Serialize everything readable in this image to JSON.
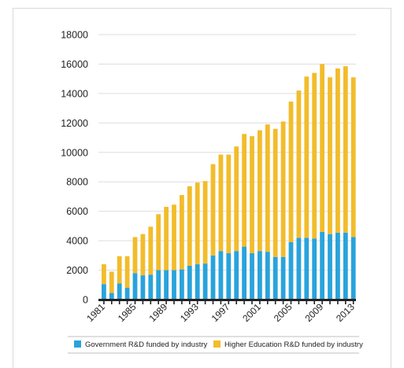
{
  "chart_data": {
    "type": "bar",
    "stacked": true,
    "title": "",
    "xlabel": "",
    "ylabel": "",
    "ylim": [
      0,
      18000
    ],
    "yticks": [
      0,
      2000,
      4000,
      6000,
      8000,
      10000,
      12000,
      14000,
      16000,
      18000
    ],
    "grid": true,
    "legend": "bottom",
    "colors": {
      "government": "#29a3dc",
      "higher_education": "#f2bc2b",
      "axis": "#222222",
      "grid": "#dedede"
    },
    "categories": [
      "1981",
      "1982",
      "1983",
      "1984",
      "1985",
      "1986",
      "1987",
      "1988",
      "1989",
      "1990",
      "1991",
      "1992",
      "1993",
      "1994",
      "1995",
      "1996",
      "1997",
      "1998",
      "1999",
      "2000",
      "2001",
      "2002",
      "2003",
      "2004",
      "2005",
      "2006",
      "2007",
      "2008",
      "2009",
      "2010",
      "2011",
      "2012",
      "2013"
    ],
    "xtick_labels": [
      "1981",
      "1985",
      "1989",
      "1993",
      "1997",
      "2001",
      "2005",
      "2009",
      "2013"
    ],
    "series": [
      {
        "name": "Government R&D funded by industry",
        "values": [
          1050,
          450,
          1100,
          800,
          1800,
          1650,
          1700,
          2000,
          2000,
          2000,
          2050,
          2300,
          2400,
          2450,
          3000,
          3300,
          3150,
          3300,
          3600,
          3150,
          3300,
          3250,
          2900,
          2900,
          3900,
          4200,
          4200,
          4150,
          4600,
          4450,
          4550,
          4550,
          4250
        ]
      },
      {
        "name": "Higher Education R&D funded by industry",
        "values": [
          1350,
          1450,
          1850,
          2150,
          2450,
          2800,
          3250,
          3800,
          4300,
          4450,
          5050,
          5400,
          5550,
          5600,
          6200,
          6550,
          6700,
          7100,
          7650,
          7950,
          8200,
          8650,
          8700,
          9200,
          9550,
          10000,
          10950,
          11250,
          11400,
          10650,
          11150,
          11300,
          10850
        ]
      }
    ]
  }
}
